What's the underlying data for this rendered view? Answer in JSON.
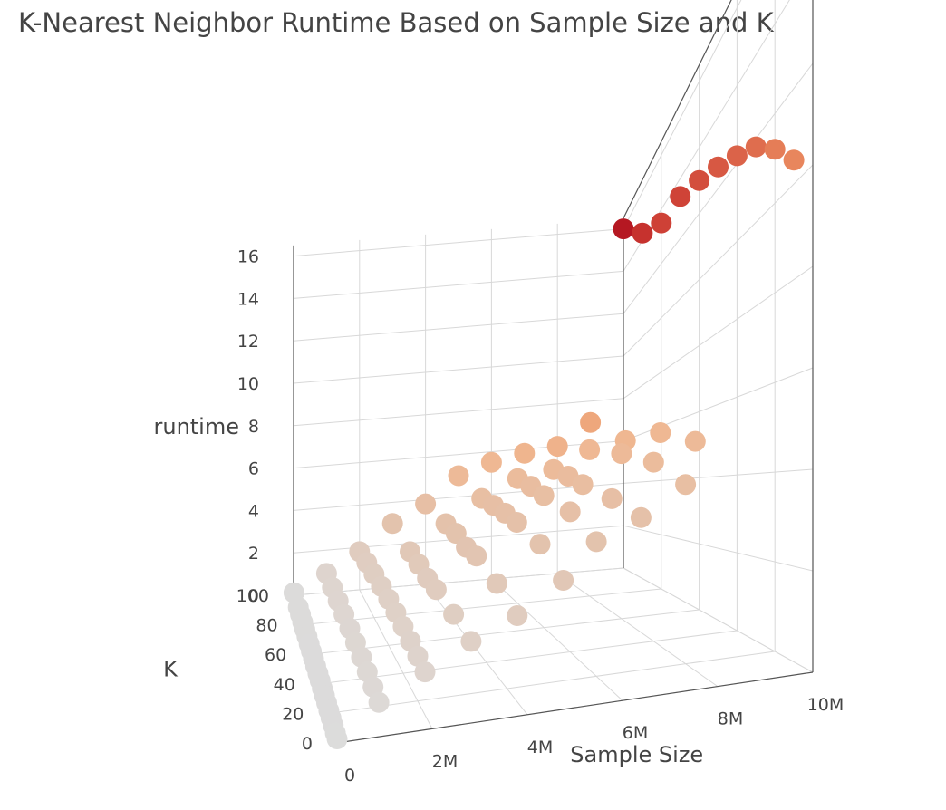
{
  "chart_data": {
    "type": "scatter3d",
    "title": "K-Nearest Neighbor Runtime Based on Sample Size and K",
    "x_axis": {
      "title": "Sample Size",
      "range": [
        0,
        10000000
      ],
      "ticks": [
        0,
        2000000,
        4000000,
        6000000,
        8000000,
        10000000
      ],
      "tick_labels": [
        "0",
        "2M",
        "4M",
        "6M",
        "8M",
        "10M"
      ]
    },
    "y_axis": {
      "title": "K",
      "range": [
        0,
        100
      ],
      "ticks": [
        0,
        20,
        40,
        60,
        80,
        100
      ],
      "tick_labels": [
        "0",
        "20",
        "40",
        "60",
        "80",
        "100"
      ]
    },
    "z_axis": {
      "title": "runtime",
      "range": [
        0,
        16.5
      ],
      "ticks": [
        0,
        2,
        4,
        6,
        8,
        10,
        12,
        14,
        16
      ],
      "tick_labels": [
        "0",
        "2",
        "4",
        "6",
        "8",
        "10",
        "12",
        "14",
        "16"
      ]
    },
    "colorscale": [
      "#dcdcdc",
      "#e2c4b0",
      "#efb893",
      "#ee9868",
      "#e7825a",
      "#cc3a32",
      "#b0101f"
    ],
    "grid": true,
    "series": [
      {
        "x": [
          10000,
          10000,
          10000,
          10000,
          10000,
          10000,
          10000,
          10000,
          10000,
          10000,
          10000,
          10000,
          10000,
          10000,
          10000,
          10000,
          10000,
          10000,
          10000,
          10000
        ],
        "y": [
          1,
          5,
          10,
          15,
          20,
          25,
          30,
          35,
          40,
          45,
          50,
          55,
          60,
          65,
          70,
          75,
          80,
          85,
          90,
          100
        ],
        "z": [
          0.05,
          0.05,
          0.06,
          0.06,
          0.06,
          0.07,
          0.07,
          0.07,
          0.08,
          0.08,
          0.08,
          0.09,
          0.09,
          0.09,
          0.1,
          0.1,
          0.1,
          0.11,
          0.11,
          0.12
        ]
      },
      {
        "x": [
          1000000,
          1000000,
          1000000,
          1000000,
          1000000,
          1000000,
          1000000,
          1000000,
          1000000,
          1000000
        ],
        "y": [
          10,
          20,
          30,
          40,
          50,
          60,
          70,
          80,
          90,
          100
        ],
        "z": [
          0.4,
          0.45,
          0.5,
          0.55,
          0.6,
          0.65,
          0.7,
          0.75,
          0.8,
          0.9
        ]
      },
      {
        "x": [
          2000000,
          2000000,
          2000000,
          2000000,
          2000000,
          2000000,
          2000000,
          2000000,
          2000000,
          2000000
        ],
        "y": [
          10,
          20,
          30,
          40,
          50,
          60,
          70,
          80,
          90,
          100
        ],
        "z": [
          0.9,
          1.0,
          1.1,
          1.2,
          1.3,
          1.4,
          1.5,
          1.6,
          1.7,
          1.8
        ]
      },
      {
        "x": [
          3000000,
          3000000,
          3000000,
          3000000,
          3000000,
          3000000,
          3000000
        ],
        "y": [
          10,
          30,
          50,
          60,
          70,
          80,
          100
        ],
        "z": [
          1.4,
          1.6,
          1.8,
          1.9,
          2.1,
          2.3,
          3.0
        ]
      },
      {
        "x": [
          4000000,
          4000000,
          4000000,
          4000000,
          4000000,
          4000000,
          4000000
        ],
        "y": [
          10,
          30,
          50,
          60,
          70,
          80,
          100
        ],
        "z": [
          1.8,
          2.2,
          2.6,
          2.7,
          3.0,
          3.2,
          3.8
        ]
      },
      {
        "x": [
          5000000,
          5000000,
          5000000,
          5000000,
          5000000,
          5000000,
          5000000
        ],
        "y": [
          10,
          30,
          50,
          60,
          70,
          80,
          100
        ],
        "z": [
          2.4,
          3.0,
          3.4,
          3.6,
          3.8,
          4.0,
          5.0
        ]
      },
      {
        "x": [
          6000000,
          6000000,
          6000000,
          6000000,
          6000000,
          6000000
        ],
        "y": [
          20,
          40,
          60,
          70,
          80,
          100
        ],
        "z": [
          3.0,
          3.6,
          4.0,
          4.3,
          4.6,
          5.5
        ]
      },
      {
        "x": [
          7000000,
          7000000,
          7000000,
          7000000,
          7000000,
          7000000
        ],
        "y": [
          20,
          40,
          60,
          70,
          80,
          100
        ],
        "z": [
          3.4,
          3.8,
          4.2,
          4.5,
          4.8,
          5.8
        ]
      },
      {
        "x": [
          8000000,
          8000000,
          8000000,
          8000000,
          8000000
        ],
        "y": [
          20,
          40,
          60,
          80,
          100
        ],
        "z": [
          4.0,
          4.6,
          5.0,
          5.4,
          6.0
        ]
      },
      {
        "x": [
          9000000,
          9000000,
          9000000,
          9000000
        ],
        "y": [
          40,
          60,
          80,
          100
        ],
        "z": [
          5.0,
          5.5,
          5.6,
          7.0
        ]
      },
      {
        "x": [
          10000000,
          10000000,
          10000000,
          10000000,
          10000000,
          10000000,
          10000000,
          10000000,
          10000000,
          10000000
        ],
        "y": [
          10,
          20,
          30,
          40,
          50,
          60,
          70,
          80,
          90,
          100
        ],
        "z": [
          10.5,
          11.2,
          11.8,
          12.2,
          12.6,
          13.0,
          13.4,
          13.5,
          14.3,
          16.0
        ]
      }
    ]
  }
}
